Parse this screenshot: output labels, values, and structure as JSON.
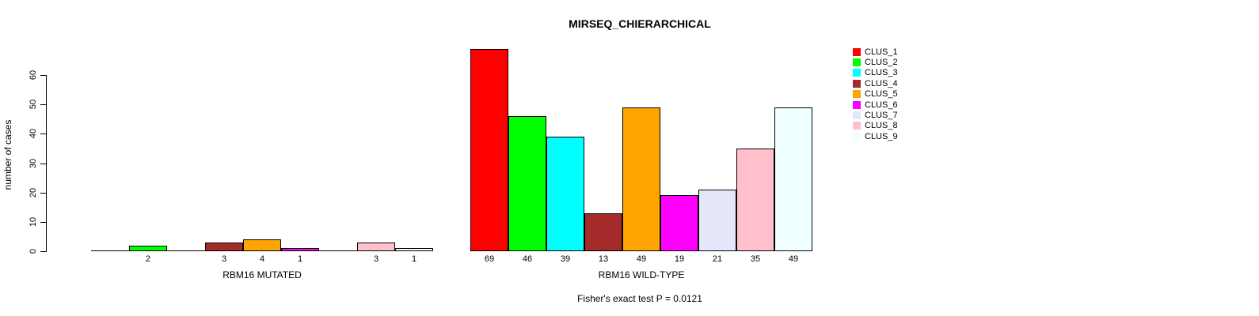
{
  "chart_data": {
    "type": "bar",
    "title": "MIRSEQ_CHIERARCHICAL",
    "ylabel": "number of cases",
    "ylim": [
      0,
      60
    ],
    "yticks": [
      0,
      10,
      20,
      30,
      40,
      50,
      60
    ],
    "grid": false,
    "legend_position": "top-right",
    "footnote": "Fisher's exact test P = 0.0121",
    "clusters": [
      {
        "name": "CLUS_1",
        "color": "#FF0000"
      },
      {
        "name": "CLUS_2",
        "color": "#00FF00"
      },
      {
        "name": "CLUS_3",
        "color": "#00FFFF"
      },
      {
        "name": "CLUS_4",
        "color": "#A52A2A"
      },
      {
        "name": "CLUS_5",
        "color": "#FFA500"
      },
      {
        "name": "CLUS_6",
        "color": "#FF00FF"
      },
      {
        "name": "CLUS_7",
        "color": "#E6E6FA"
      },
      {
        "name": "CLUS_8",
        "color": "#FFC0CB"
      },
      {
        "name": "CLUS_9",
        "color": "#F0FFFF"
      }
    ],
    "groups": [
      {
        "label": "RBM16 MUTATED",
        "values": [
          0,
          2,
          0,
          3,
          4,
          1,
          0,
          3,
          1
        ]
      },
      {
        "label": "RBM16 WILD-TYPE",
        "values": [
          69,
          46,
          39,
          13,
          49,
          19,
          21,
          35,
          49
        ]
      }
    ]
  }
}
